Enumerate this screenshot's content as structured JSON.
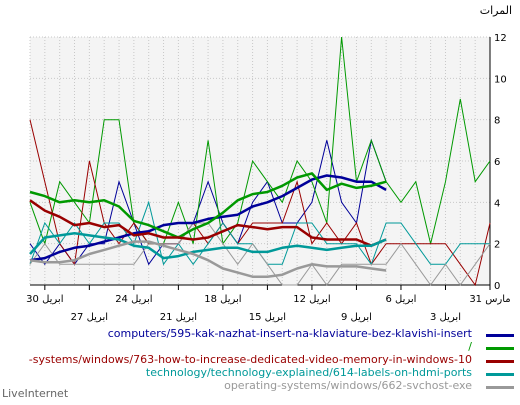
{
  "brand": "LiveInternet",
  "chart_data": {
    "type": "line",
    "ylabel": "المرات",
    "ylim": [
      0,
      12
    ],
    "yticks": [
      0,
      2,
      4,
      6,
      8,
      10,
      12
    ],
    "y_axis_side": "right",
    "grid": true,
    "x_direction": "right-to-left",
    "x_index_range": [
      0,
      31
    ],
    "xticks_upper": [
      {
        "index": 0,
        "label": "31 مارس"
      },
      {
        "index": 6,
        "label": "6 ابريل"
      },
      {
        "index": 12,
        "label": "12 ابريل"
      },
      {
        "index": 18,
        "label": "18 ابريل"
      },
      {
        "index": 24,
        "label": "24 ابريل"
      },
      {
        "index": 30,
        "label": "30 ابريل"
      }
    ],
    "xticks_lower": [
      {
        "index": 3,
        "label": "3 ابريل"
      },
      {
        "index": 9,
        "label": "9 ابريل"
      },
      {
        "index": 15,
        "label": "15 ابريل"
      },
      {
        "index": 21,
        "label": "21 ابريل"
      },
      {
        "index": 27,
        "label": "27 ابريل"
      }
    ],
    "legend_placement": "bottom",
    "series": [
      {
        "name": "computers/595-kak-nazhat-insert-na-klaviature-bez-klavishi-insert",
        "color": "#000099",
        "daily": [
          null,
          null,
          null,
          null,
          null,
          null,
          null,
          5,
          7,
          3,
          4,
          7,
          4,
          3,
          3,
          5,
          4,
          2,
          3,
          5,
          3,
          2,
          2,
          1,
          3,
          5,
          2,
          2,
          1,
          2,
          1,
          2
        ],
        "trend": [
          null,
          null,
          null,
          null,
          null,
          null,
          null,
          4.6,
          5.0,
          5.0,
          5.2,
          5.3,
          5.1,
          4.7,
          4.3,
          4.0,
          3.8,
          3.4,
          3.3,
          3.2,
          3.0,
          3.0,
          2.9,
          2.6,
          2.5,
          2.3,
          2.1,
          1.9,
          1.8,
          1.6,
          1.3,
          1.2
        ]
      },
      {
        "name": "/",
        "color": "#009900",
        "daily": [
          6,
          5,
          9,
          5,
          2,
          5,
          4,
          5,
          7,
          5,
          12,
          3,
          5,
          6,
          4,
          5,
          6,
          3,
          2,
          7,
          2,
          4,
          2,
          2,
          3,
          8,
          8,
          3,
          4,
          5,
          2,
          4
        ],
        "trend": [
          null,
          null,
          null,
          null,
          null,
          null,
          null,
          5.0,
          4.8,
          4.7,
          4.9,
          4.6,
          5.4,
          5.2,
          4.8,
          4.5,
          4.4,
          4.1,
          3.5,
          3.0,
          2.7,
          2.3,
          2.6,
          2.9,
          3.1,
          3.8,
          4.1,
          4.0,
          4.1,
          4.0,
          4.3,
          4.5
        ]
      },
      {
        "name": "-systems/windows/763-how-to-increase-dedicated-video-memory-in-windows-10",
        "color": "#990000",
        "daily": [
          3,
          0,
          1,
          2,
          2,
          2,
          2,
          2,
          1,
          3,
          2,
          3,
          2,
          5,
          3,
          3,
          3,
          2,
          3,
          2,
          3,
          2,
          2,
          2,
          3,
          2,
          3,
          6,
          1,
          2,
          5,
          8
        ],
        "trend": [
          null,
          null,
          null,
          null,
          null,
          null,
          null,
          2.2,
          1.9,
          2.2,
          2.2,
          2.2,
          2.3,
          2.8,
          2.8,
          2.7,
          2.8,
          2.9,
          2.6,
          2.3,
          2.2,
          2.3,
          2.3,
          2.5,
          2.4,
          2.9,
          2.8,
          3.0,
          2.9,
          3.3,
          3.6,
          4.1
        ]
      },
      {
        "name": "technology/technology-explained/614-labels-on-hdmi-ports",
        "color": "#009999",
        "daily": [
          2,
          2,
          2,
          1,
          1,
          2,
          3,
          3,
          1,
          2,
          2,
          2,
          3,
          3,
          1,
          1,
          2,
          2,
          3,
          2,
          1,
          2,
          1,
          4,
          2,
          3,
          3,
          2,
          3,
          2,
          3,
          1
        ],
        "trend": [
          null,
          null,
          null,
          null,
          null,
          null,
          null,
          2.2,
          1.9,
          1.9,
          1.8,
          1.7,
          1.8,
          1.9,
          1.8,
          1.6,
          1.6,
          1.8,
          1.8,
          1.7,
          1.6,
          1.4,
          1.3,
          1.8,
          1.9,
          2.2,
          2.3,
          2.4,
          2.5,
          2.4,
          2.3,
          1.5
        ]
      },
      {
        "name": "operating-systems/windows/662-svchost-exe",
        "color": "#999999",
        "daily": [
          2,
          1,
          0,
          1,
          0,
          1,
          2,
          1,
          1,
          1,
          1,
          0,
          1,
          0,
          0,
          1,
          2,
          1,
          2,
          3,
          3,
          2,
          2,
          2,
          1,
          1,
          1,
          1,
          1,
          1,
          2,
          1
        ],
        "trend": [
          null,
          null,
          null,
          null,
          null,
          null,
          null,
          0.7,
          0.8,
          0.9,
          0.9,
          0.9,
          1.0,
          0.8,
          0.5,
          0.4,
          0.4,
          0.6,
          0.8,
          1.2,
          1.5,
          1.7,
          1.9,
          2.1,
          2.1,
          1.9,
          1.7,
          1.5,
          1.2,
          1.1,
          1.1,
          1.2
        ]
      }
    ]
  }
}
